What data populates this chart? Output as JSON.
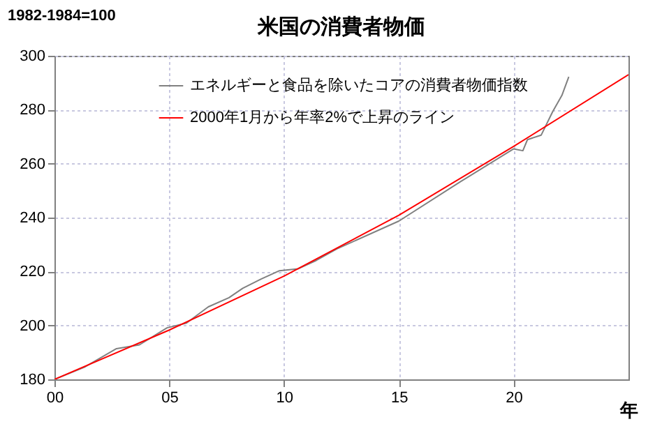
{
  "chart_data": {
    "type": "line",
    "title": "米国の消費者物価",
    "ylabel": "1982-1984=100",
    "xlabel": "年",
    "xlim": [
      0,
      25
    ],
    "xticks": [
      {
        "value": 0,
        "label": "00"
      },
      {
        "value": 5,
        "label": "05"
      },
      {
        "value": 10,
        "label": "10"
      },
      {
        "value": 15,
        "label": "15"
      },
      {
        "value": 20,
        "label": "20"
      }
    ],
    "ylim": [
      180,
      300
    ],
    "yticks": [
      180,
      200,
      220,
      240,
      260,
      280,
      300
    ],
    "grid": true,
    "legend": "top left",
    "series": [
      {
        "name": "エネルギーと食品を除いたコアの消費者物価指数",
        "color": "#808080",
        "x": [
          0,
          1.3,
          2.7,
          3.7,
          4.9,
          5.75,
          6.7,
          7.6,
          8.2,
          9.0,
          9.8,
          10.6,
          11.4,
          12.3,
          15.0,
          17.7,
          20.0,
          20.4,
          20.6,
          21.2,
          21.4,
          21.7,
          22.1,
          22.4
        ],
        "values": [
          180,
          184.5,
          191.4,
          192.8,
          199.1,
          200.9,
          206.9,
          210.3,
          213.8,
          217.2,
          220.3,
          221.0,
          224.1,
          228.4,
          238.7,
          253.4,
          265.5,
          264.8,
          268.9,
          270.6,
          274.1,
          279.3,
          285.3,
          292.2
        ]
      },
      {
        "name": "2000年1月から年率2%で上昇のライン",
        "color": "#ff0000",
        "x": [
          0,
          5,
          10,
          15,
          20,
          25
        ],
        "values": [
          180,
          198.3,
          218.3,
          240.9,
          266.4,
          293
        ]
      }
    ]
  }
}
